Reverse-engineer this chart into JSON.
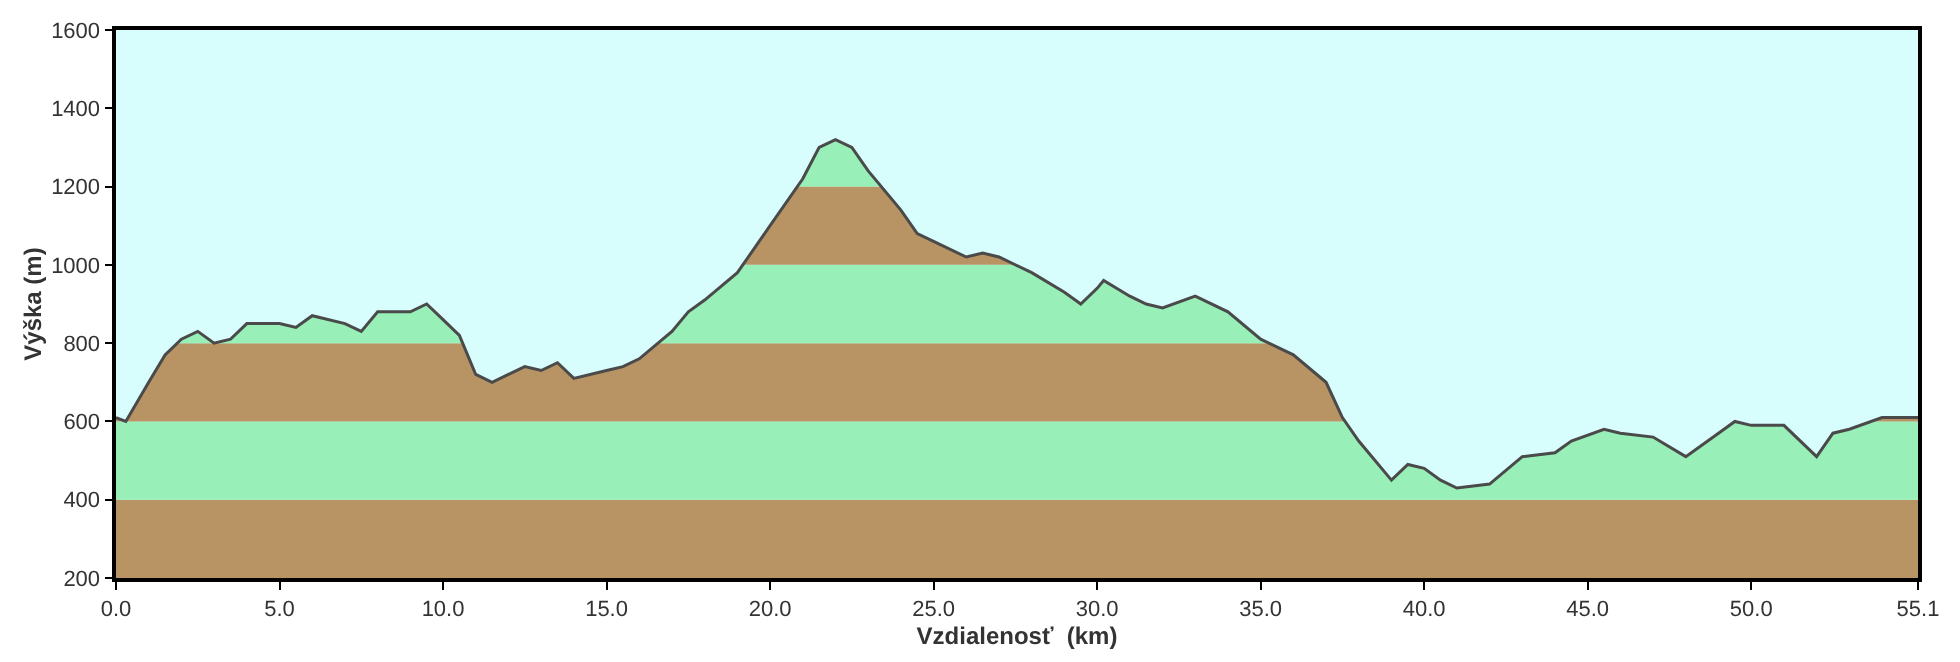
{
  "chart_data": {
    "type": "area",
    "xlabel": "Vzdialenosť  (km)",
    "ylabel": "Výška (m)",
    "x": [
      0,
      0.3,
      1,
      1.5,
      2,
      2.5,
      3,
      3.5,
      4,
      5,
      5.5,
      6,
      7,
      7.5,
      8,
      9,
      9.5,
      10,
      10.5,
      11,
      11.5,
      12,
      12.5,
      13,
      13.5,
      14,
      15,
      15.5,
      16,
      17,
      17.5,
      18,
      19,
      20,
      21,
      21.5,
      22,
      22.5,
      23,
      24,
      24.5,
      25,
      26,
      26.5,
      27,
      28,
      29,
      29.5,
      30,
      30.2,
      31,
      31.5,
      32,
      33,
      34,
      35,
      36,
      37,
      37.5,
      38,
      39,
      39.5,
      40,
      40.5,
      41,
      42,
      43,
      44,
      44.5,
      45.5,
      46,
      47,
      48,
      49,
      49.5,
      50,
      51,
      52,
      52.5,
      53,
      54,
      55.1
    ],
    "series": [
      {
        "color": "#4a4a4a",
        "values": [
          610,
          600,
          700,
          770,
          810,
          830,
          800,
          810,
          850,
          850,
          840,
          870,
          850,
          830,
          880,
          880,
          900,
          860,
          820,
          720,
          700,
          720,
          740,
          730,
          750,
          710,
          730,
          740,
          760,
          830,
          880,
          910,
          980,
          1100,
          1220,
          1300,
          1320,
          1300,
          1240,
          1140,
          1080,
          1060,
          1020,
          1030,
          1020,
          980,
          930,
          900,
          940,
          960,
          920,
          900,
          890,
          920,
          880,
          810,
          770,
          700,
          610,
          550,
          450,
          490,
          480,
          450,
          430,
          440,
          510,
          520,
          550,
          580,
          570,
          560,
          510,
          570,
          600,
          590,
          590,
          510,
          570,
          580,
          610,
          610
        ]
      }
    ],
    "xlim": [
      0,
      55.1
    ],
    "ylim": [
      200,
      1600
    ],
    "xticks": [
      {
        "value": 0,
        "label": "0.0"
      },
      {
        "value": 5,
        "label": "5.0"
      },
      {
        "value": 10,
        "label": "10.0"
      },
      {
        "value": 15,
        "label": "15.0"
      },
      {
        "value": 20,
        "label": "20.0"
      },
      {
        "value": 25,
        "label": "25.0"
      },
      {
        "value": 30,
        "label": "30.0"
      },
      {
        "value": 35,
        "label": "35.0"
      },
      {
        "value": 40,
        "label": "40.0"
      },
      {
        "value": 45,
        "label": "45.0"
      },
      {
        "value": 50,
        "label": "50.0"
      },
      55.1
    ],
    "yticks": [
      200,
      400,
      600,
      800,
      1000,
      1200,
      1400,
      1600
    ],
    "bands": [
      {
        "axis": "y",
        "from": 200,
        "to": 400,
        "color": "#b89464"
      },
      {
        "axis": "y",
        "from": 400,
        "to": 600,
        "color": "#98f0b8"
      },
      {
        "axis": "y",
        "from": 600,
        "to": 800,
        "color": "#b89464"
      },
      {
        "axis": "y",
        "from": 800,
        "to": 1000,
        "color": "#98f0b8"
      },
      {
        "axis": "y",
        "from": 1000,
        "to": 1200,
        "color": "#b89464"
      },
      {
        "axis": "y",
        "from": 1200,
        "to": 1400,
        "color": "#98f0b8"
      }
    ],
    "grid": false
  }
}
